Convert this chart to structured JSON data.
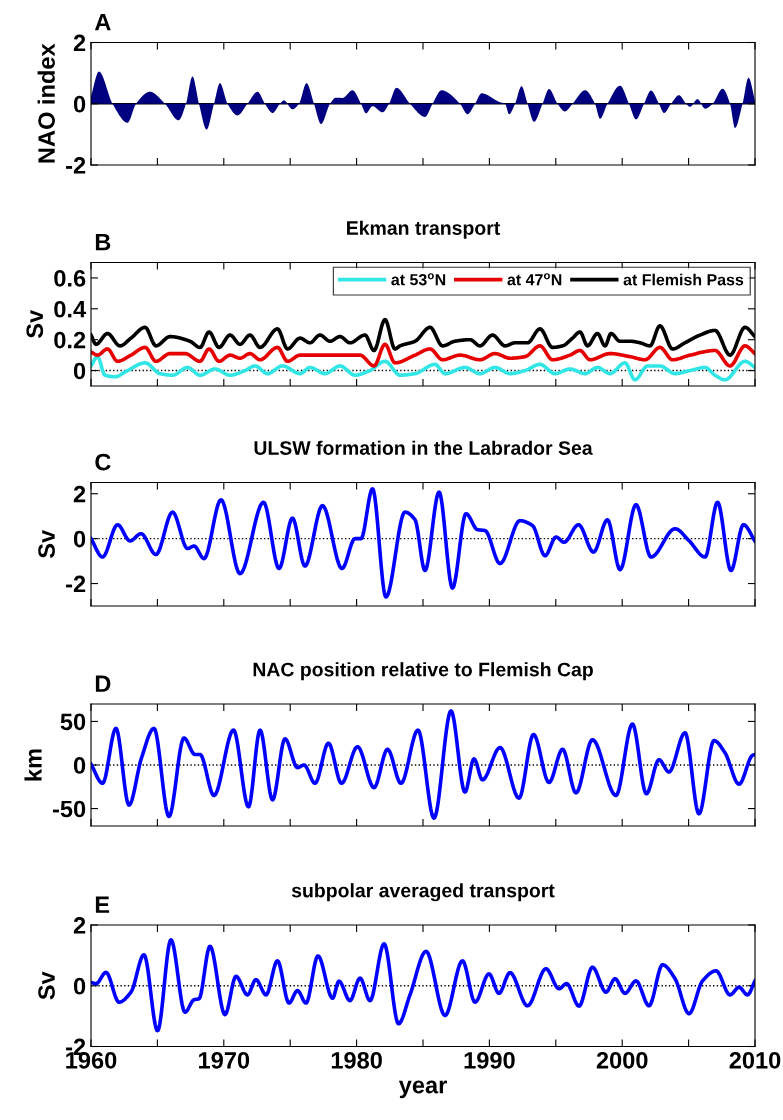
{
  "chart_data": [
    {
      "type": "area",
      "annotations": [
        "A"
      ],
      "ylabel": "NAO index",
      "color": "#000080",
      "x": [
        1960.0,
        1960.6,
        1961.62,
        1962.75,
        1963.39,
        1964.44,
        1965.57,
        1966.59,
        1967.15,
        1967.64,
        1968.13,
        1968.7,
        1969.26,
        1969.71,
        1970.28,
        1971.03,
        1971.78,
        1972.54,
        1973.1,
        1973.67,
        1974.23,
        1974.53,
        1975.17,
        1975.66,
        1976.23,
        1976.79,
        1977.32,
        1978.0,
        1978.45,
        1978.94,
        1979.69,
        1980.33,
        1980.71,
        1981.2,
        1981.95,
        1982.44,
        1983.0,
        1984.02,
        1985.15,
        1985.72,
        1986.39,
        1987.79,
        1988.35,
        1988.92,
        1989.41,
        1990.8,
        1991.18,
        1991.48,
        1991.93,
        1992.42,
        1992.87,
        1993.36,
        1994.0,
        1994.49,
        1995.13,
        1995.69,
        1996.26,
        1997.2,
        1997.95,
        1998.33,
        1998.89,
        1999.84,
        2000.51,
        2001.04,
        2001.64,
        2002.17,
        2002.77,
        2003.15,
        2003.68,
        2004.28,
        2004.81,
        2005.11,
        2005.67,
        2006.24,
        2006.81,
        2007.56,
        2008.12,
        2008.49,
        2009.06,
        2009.51,
        2010.0
      ],
      "values": [
        0.25,
        1.05,
        0,
        -0.62,
        0,
        0.39,
        0,
        -0.54,
        0,
        0.89,
        0,
        -0.84,
        0,
        0.67,
        0,
        -0.38,
        0,
        0.39,
        0,
        -0.3,
        0,
        0.11,
        -0.18,
        0,
        0.67,
        0,
        -0.66,
        0,
        0.2,
        0.19,
        0.44,
        0,
        -0.31,
        -0.08,
        -0.28,
        0,
        0.52,
        0,
        -0.43,
        0,
        0.44,
        0,
        -0.34,
        0,
        0.34,
        0.05,
        0,
        -0.34,
        0,
        0.57,
        0,
        -0.59,
        0,
        0.48,
        0,
        -0.25,
        0,
        0.44,
        0,
        -0.49,
        0,
        0.59,
        0,
        -0.51,
        0,
        0.43,
        0,
        -0.3,
        0,
        0.28,
        0,
        -0.1,
        0.15,
        -0.16,
        0,
        0.49,
        0,
        -0.79,
        0,
        0.85,
        0.1
      ],
      "xlim": [
        1960,
        2010
      ],
      "xticks": [
        1960,
        {
          "value": 1965,
          "label": null
        },
        1970,
        {
          "value": 1975,
          "label": null
        },
        1980,
        {
          "value": 1985,
          "label": null
        },
        1990,
        {
          "value": 1995,
          "label": null
        },
        2000,
        {
          "value": 2005,
          "label": null
        },
        2010
      ],
      "ylim": [
        -2,
        2
      ],
      "yticks": [
        -2,
        0,
        2
      ],
      "tick_labels": "y",
      "grid": false,
      "ref_lines": [
        {
          "axis": "y",
          "value": 0,
          "color": "#000000",
          "line_style": "solid"
        }
      ]
    },
    {
      "type": "line",
      "annotations": [
        "B"
      ],
      "title": "Ekman transport",
      "ylabel": "Sv",
      "legend": "top right",
      "series": [
        {
          "name": "at 53$^{o}$N",
          "color": "#33e6e6",
          "x": [
            1960.0,
            1960.49,
            1961.05,
            1961.81,
            1962.75,
            1964.07,
            1965.2,
            1966.14,
            1967.27,
            1968.21,
            1969.34,
            1970.47,
            1971.6,
            1972.35,
            1973.29,
            1974.42,
            1975.74,
            1976.49,
            1977.62,
            1978.75,
            1979.88,
            1981.01,
            1982.14,
            1983.27,
            1984.4,
            1985.9,
            1986.66,
            1988.16,
            1989.29,
            1990.42,
            1991.55,
            1992.68,
            1993.81,
            1994.94,
            1996.07,
            1997.2,
            1998.14,
            1999.08,
            2000.21,
            2000.96,
            2001.91,
            2002.84,
            2003.97,
            2005.11,
            2006.24,
            2006.99,
            2007.74,
            2009.25,
            2010.0
          ],
          "values": [
            0.03,
            0.09,
            -0.03,
            -0.04,
            0.0,
            0.05,
            -0.02,
            -0.03,
            0.02,
            -0.03,
            0.01,
            -0.03,
            0.0,
            0.03,
            -0.02,
            0.03,
            -0.02,
            0.02,
            -0.02,
            0.03,
            -0.03,
            0.0,
            0.06,
            -0.03,
            -0.02,
            0.04,
            -0.02,
            0.02,
            -0.02,
            0.02,
            -0.02,
            0.0,
            0.04,
            -0.02,
            0.01,
            -0.02,
            0.02,
            -0.02,
            0.05,
            -0.06,
            0.03,
            0.03,
            -0.02,
            0.0,
            0.02,
            -0.03,
            -0.06,
            0.06,
            0.02
          ]
        },
        {
          "name": "at 47$^{o}$N",
          "color": "#e60000",
          "x": [
            1960.0,
            1960.49,
            1961.24,
            1962.0,
            1963.01,
            1964.07,
            1964.89,
            1965.95,
            1967.08,
            1968.21,
            1968.89,
            1969.64,
            1970.47,
            1971.22,
            1971.97,
            1972.73,
            1974.04,
            1974.8,
            1975.74,
            1977.24,
            1978.75,
            1980.26,
            1981.31,
            1982.14,
            1982.89,
            1984.4,
            1985.53,
            1986.47,
            1987.79,
            1989.29,
            1990.42,
            1991.55,
            1992.68,
            1993.81,
            1994.75,
            1996.07,
            1996.82,
            1997.58,
            1999.08,
            2000.59,
            2001.72,
            2002.84,
            2003.79,
            2005.11,
            2006.99,
            2008.12,
            2009.25,
            2010.0
          ],
          "values": [
            0.12,
            0.1,
            0.14,
            0.06,
            0.1,
            0.15,
            0.06,
            0.11,
            0.11,
            0.06,
            0.14,
            0.06,
            0.1,
            0.08,
            0.11,
            0.07,
            0.15,
            0.06,
            0.1,
            0.1,
            0.1,
            0.1,
            0.03,
            0.17,
            0.05,
            0.1,
            0.14,
            0.07,
            0.1,
            0.07,
            0.11,
            0.08,
            0.09,
            0.16,
            0.07,
            0.1,
            0.13,
            0.07,
            0.11,
            0.09,
            0.07,
            0.15,
            0.07,
            0.1,
            0.13,
            0.03,
            0.16,
            0.11
          ]
        },
        {
          "name": "at Flemish Pass",
          "color": "#000000",
          "x": [
            1960.0,
            1960.38,
            1961.24,
            1962.18,
            1963.01,
            1964.07,
            1964.89,
            1965.95,
            1967.45,
            1968.21,
            1968.89,
            1969.64,
            1970.47,
            1971.22,
            1971.97,
            1972.73,
            1974.04,
            1974.8,
            1975.74,
            1976.49,
            1977.24,
            1978.0,
            1978.75,
            1979.5,
            1980.63,
            1981.31,
            1982.14,
            1982.89,
            1983.27,
            1984.4,
            1985.53,
            1986.47,
            1987.41,
            1988.54,
            1989.29,
            1990.23,
            1991.18,
            1991.93,
            1992.87,
            1993.81,
            1994.75,
            1995.51,
            1996.26,
            1996.82,
            1997.39,
            1998.14,
            1998.71,
            1999.16,
            1999.83,
            2000.59,
            2001.34,
            2002.09,
            2002.84,
            2003.79,
            2004.73,
            2005.86,
            2006.99,
            2008.12,
            2009.25,
            2010.0
          ],
          "values": [
            0.23,
            0.17,
            0.24,
            0.16,
            0.21,
            0.28,
            0.16,
            0.22,
            0.19,
            0.15,
            0.25,
            0.15,
            0.23,
            0.17,
            0.23,
            0.15,
            0.27,
            0.14,
            0.21,
            0.18,
            0.23,
            0.19,
            0.22,
            0.18,
            0.23,
            0.13,
            0.33,
            0.14,
            0.16,
            0.19,
            0.28,
            0.16,
            0.19,
            0.2,
            0.16,
            0.23,
            0.16,
            0.18,
            0.18,
            0.27,
            0.15,
            0.16,
            0.21,
            0.25,
            0.16,
            0.24,
            0.16,
            0.24,
            0.19,
            0.19,
            0.18,
            0.16,
            0.29,
            0.14,
            0.18,
            0.23,
            0.26,
            0.1,
            0.28,
            0.22
          ]
        }
      ],
      "xlim": [
        1960,
        2010
      ],
      "xticks": [
        1960,
        {
          "value": 1965,
          "label": null
        },
        1970,
        {
          "value": 1975,
          "label": null
        },
        1980,
        {
          "value": 1985,
          "label": null
        },
        1990,
        {
          "value": 1995,
          "label": null
        },
        2000,
        {
          "value": 2005,
          "label": null
        },
        2010
      ],
      "ylim": [
        -0.1,
        0.7
      ],
      "yticks": [
        0,
        0.2,
        0.4,
        0.6
      ],
      "tick_labels": "y",
      "grid": false,
      "ref_lines": [
        {
          "axis": "y",
          "value": 0,
          "color": "#000000",
          "line_style": "dotted"
        }
      ]
    },
    {
      "type": "line",
      "annotations": [
        "C"
      ],
      "title": "ULSW formation in the Labrador Sea",
      "ylabel": "Sv",
      "series": [
        {
          "color": "#0000ff",
          "x": [
            1960.0,
            1960.87,
            1962.0,
            1962.94,
            1963.77,
            1964.89,
            1966.14,
            1967.27,
            1967.76,
            1968.51,
            1969.79,
            1971.22,
            1972.99,
            1974.16,
            1975.17,
            1976.11,
            1977.43,
            1978.9,
            1979.88,
            1980.33,
            1981.2,
            1982.21,
            1983.64,
            1984.4,
            1985.15,
            1986.21,
            1987.22,
            1988.24,
            1989.1,
            1989.67,
            1990.8,
            1992.3,
            1993.25,
            1994.19,
            1995.02,
            1995.62,
            1996.71,
            1997.84,
            1998.89,
            1999.84,
            2001.04,
            2002.17,
            2003.98,
            2005.03,
            2006.24,
            2007.18,
            2008.19,
            2009.13,
            2010.0
          ],
          "values": [
            0,
            -0.82,
            0.62,
            -0.1,
            0.22,
            -0.71,
            1.18,
            -0.44,
            -0.33,
            -0.89,
            1.73,
            -1.56,
            1.62,
            -1.33,
            0.91,
            -1.22,
            1.47,
            -1.33,
            0,
            0,
            2.22,
            -2.6,
            1.18,
            0.84,
            -1.42,
            2.07,
            -2.2,
            1.11,
            0.4,
            0.36,
            -1.11,
            0.8,
            0.58,
            -0.76,
            0.07,
            -0.16,
            0.62,
            -0.6,
            0.84,
            -1.38,
            1.51,
            -0.82,
            0.44,
            -0.09,
            -0.82,
            1.62,
            -1.42,
            0.62,
            -0.11
          ]
        }
      ],
      "xlim": [
        1960,
        2010
      ],
      "xticks": [
        1960,
        {
          "value": 1965,
          "label": null
        },
        1970,
        {
          "value": 1975,
          "label": null
        },
        1980,
        {
          "value": 1985,
          "label": null
        },
        1990,
        {
          "value": 1995,
          "label": null
        },
        2000,
        {
          "value": 2005,
          "label": null
        },
        2010
      ],
      "ylim": [
        -3,
        2.5
      ],
      "yticks": [
        -2,
        0,
        2
      ],
      "tick_labels": "y",
      "grid": false,
      "ref_lines": [
        {
          "axis": "y",
          "value": 0,
          "color": "#000000",
          "line_style": "dotted"
        }
      ]
    },
    {
      "type": "line",
      "annotations": [
        "D"
      ],
      "title": "NAC position relative to Flemish Cap",
      "ylabel": "km",
      "series": [
        {
          "color": "#0000ff",
          "x": [
            1960.0,
            1960.87,
            1961.88,
            1962.86,
            1963.8,
            1964.74,
            1965.87,
            1967.0,
            1967.83,
            1968.21,
            1969.26,
            1970.73,
            1971.86,
            1972.73,
            1973.67,
            1974.61,
            1975.55,
            1976.04,
            1976.87,
            1977.88,
            1978.86,
            1980.07,
            1981.31,
            1982.33,
            1983.34,
            1984.62,
            1985.83,
            1987.11,
            1988.16,
            1988.84,
            1989.48,
            1990.8,
            1992.23,
            1993.32,
            1994.49,
            1995.51,
            1996.52,
            1997.76,
            1999.53,
            2000.77,
            2001.82,
            2002.77,
            2003.52,
            2004.73,
            2005.78,
            2006.91,
            2007.74,
            2008.8,
            2009.81,
            2010.0
          ],
          "values": [
            1,
            -21,
            42,
            -46,
            8,
            42,
            -59,
            31,
            12,
            12,
            -35,
            40,
            -48,
            40,
            -40,
            30,
            -3,
            0,
            -21,
            25,
            -21,
            21,
            -26,
            18,
            -21,
            40,
            -61,
            62,
            -31,
            7,
            -17,
            20,
            -38,
            35,
            -20,
            18,
            -32,
            29,
            -35,
            47,
            -33,
            6,
            -8,
            37,
            -56,
            28,
            14,
            -22,
            11,
            12
          ]
        }
      ],
      "xlim": [
        1960,
        2010
      ],
      "xticks": [
        1960,
        {
          "value": 1965,
          "label": null
        },
        1970,
        {
          "value": 1975,
          "label": null
        },
        1980,
        {
          "value": 1985,
          "label": null
        },
        1990,
        {
          "value": 1995,
          "label": null
        },
        2000,
        {
          "value": 2005,
          "label": null
        },
        2010
      ],
      "ylim": [
        -70,
        70
      ],
      "yticks": [
        -50,
        0,
        50
      ],
      "tick_labels": "y",
      "grid": false,
      "ref_lines": [
        {
          "axis": "y",
          "value": 0,
          "color": "#000000",
          "line_style": "dotted"
        }
      ]
    },
    {
      "type": "line",
      "annotations": [
        "E"
      ],
      "title": "subpolar averaged transport",
      "ylabel": "Sv",
      "xlabel": "year",
      "series": [
        {
          "color": "#0000ff",
          "x": [
            1960.0,
            1960.38,
            1961.13,
            1962.11,
            1963.01,
            1963.99,
            1965.01,
            1966.02,
            1967.08,
            1967.76,
            1968.13,
            1968.96,
            1970.09,
            1970.92,
            1971.78,
            1972.42,
            1973.18,
            1974.04,
            1974.91,
            1975.55,
            1976.19,
            1977.09,
            1978.19,
            1978.67,
            1979.5,
            1980.26,
            1981.01,
            1982.07,
            1983.16,
            1984.02,
            1985.23,
            1986.66,
            1987.97,
            1988.92,
            1989.97,
            1990.72,
            1991.55,
            1992.87,
            1994.26,
            1995.24,
            1995.81,
            1996.75,
            1997.76,
            1998.78,
            1999.46,
            2000.21,
            2001.04,
            2002.02,
            2003.04,
            2003.98,
            2005.03,
            2006.05,
            2007.07,
            2008.12,
            2008.8,
            2009.43,
            2010.0
          ],
          "values": [
            0.11,
            0.07,
            0.44,
            -0.54,
            -0.21,
            1.02,
            -1.48,
            1.51,
            -0.87,
            -0.46,
            -0.43,
            1.3,
            -0.95,
            0.31,
            -0.3,
            0.2,
            -0.3,
            0.82,
            -0.57,
            -0.16,
            -0.57,
            0.98,
            -0.41,
            0.15,
            -0.49,
            0.25,
            -0.49,
            1.38,
            -1.25,
            -0.3,
            1.13,
            -0.98,
            0.82,
            -0.54,
            0.39,
            -0.25,
            0.43,
            -0.66,
            0.56,
            -0.1,
            0.07,
            -0.67,
            0.61,
            -0.21,
            0.23,
            -0.25,
            0.16,
            -0.66,
            0.69,
            0.23,
            -0.92,
            0.16,
            0.49,
            -0.3,
            -0.05,
            -0.3,
            0.16
          ]
        }
      ],
      "xlim": [
        1960,
        2010
      ],
      "xticks": [
        1960,
        {
          "value": 1965,
          "label": null
        },
        1970,
        {
          "value": 1975,
          "label": null
        },
        1980,
        {
          "value": 1985,
          "label": null
        },
        1990,
        {
          "value": 1995,
          "label": null
        },
        2000,
        {
          "value": 2005,
          "label": null
        },
        2010
      ],
      "ylim": [
        -2,
        2
      ],
      "yticks": [
        -2,
        0,
        2
      ],
      "grid": false,
      "ref_lines": [
        {
          "axis": "y",
          "value": 0,
          "color": "#000000",
          "line_style": "dotted"
        }
      ]
    }
  ]
}
